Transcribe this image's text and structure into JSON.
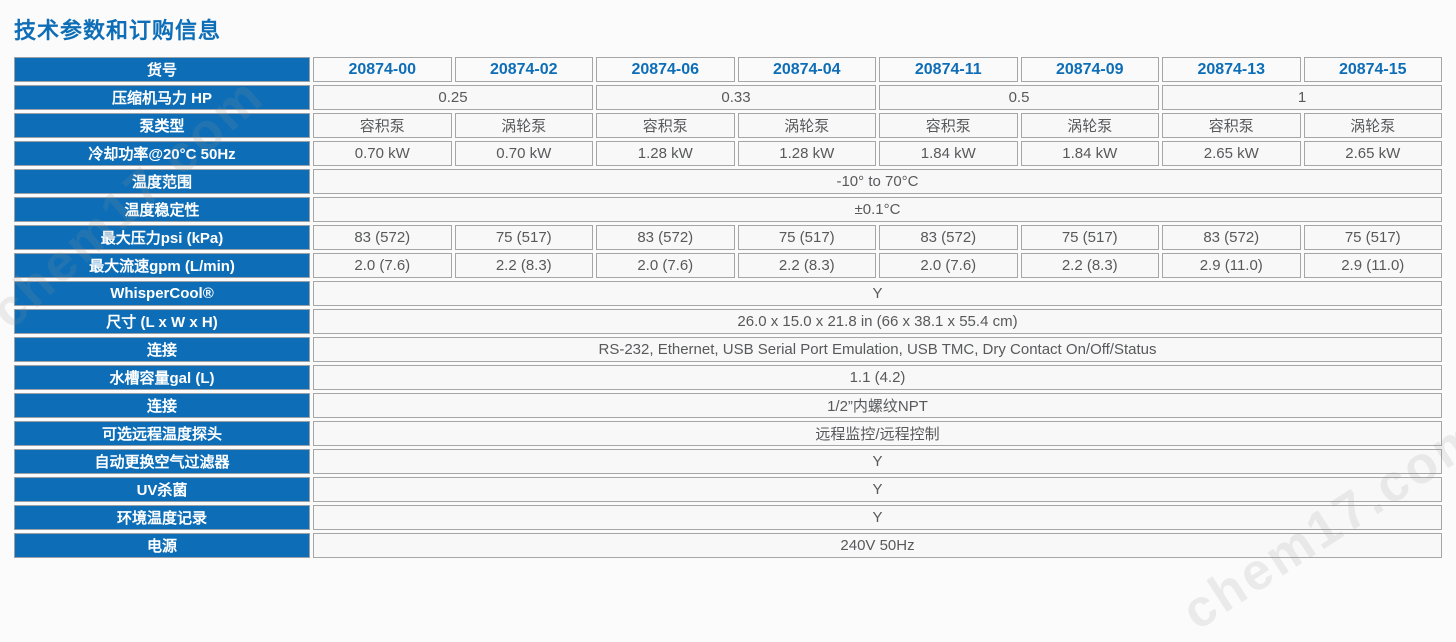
{
  "title": "技术参数和订购信息",
  "watermark": {
    "text": "chem17.com"
  },
  "colors": {
    "accent_blue": "#0d6eb7",
    "label_bg": "#0d6eb7",
    "cell_bg": "#f8f8f8",
    "cell_border": "#a6a6a6",
    "cell_text": "#58595b",
    "page_bg": "#fbfbfb"
  },
  "table": {
    "rows": [
      {
        "label": "货号",
        "header": true,
        "cells": [
          {
            "text": "20874-00"
          },
          {
            "text": "20874-02"
          },
          {
            "text": "20874-06"
          },
          {
            "text": "20874-04"
          },
          {
            "text": "20874-11"
          },
          {
            "text": "20874-09"
          },
          {
            "text": "20874-13"
          },
          {
            "text": "20874-15"
          }
        ]
      },
      {
        "label": "压缩机马力 HP",
        "cells": [
          {
            "text": "0.25",
            "colspan": 2
          },
          {
            "text": "0.33",
            "colspan": 2
          },
          {
            "text": "0.5",
            "colspan": 2
          },
          {
            "text": "1",
            "colspan": 2
          }
        ]
      },
      {
        "label": "泵类型",
        "cells": [
          {
            "text": "容积泵"
          },
          {
            "text": "涡轮泵"
          },
          {
            "text": "容积泵"
          },
          {
            "text": "涡轮泵"
          },
          {
            "text": "容积泵"
          },
          {
            "text": "涡轮泵"
          },
          {
            "text": "容积泵"
          },
          {
            "text": "涡轮泵"
          }
        ]
      },
      {
        "label": "冷却功率@20°C 50Hz",
        "cells": [
          {
            "text": "0.70 kW"
          },
          {
            "text": "0.70 kW"
          },
          {
            "text": "1.28 kW"
          },
          {
            "text": "1.28 kW"
          },
          {
            "text": "1.84 kW"
          },
          {
            "text": "1.84 kW"
          },
          {
            "text": "2.65 kW"
          },
          {
            "text": "2.65 kW"
          }
        ]
      },
      {
        "label": "温度范围",
        "cells": [
          {
            "text": "-10° to 70°C",
            "colspan": 8
          }
        ]
      },
      {
        "label": "温度稳定性",
        "cells": [
          {
            "text": "±0.1°C",
            "colspan": 8
          }
        ]
      },
      {
        "label": "最大压力psi (kPa)",
        "cells": [
          {
            "text": "83 (572)"
          },
          {
            "text": "75 (517)"
          },
          {
            "text": "83 (572)"
          },
          {
            "text": "75 (517)"
          },
          {
            "text": "83 (572)"
          },
          {
            "text": "75 (517)"
          },
          {
            "text": "83 (572)"
          },
          {
            "text": "75 (517)"
          }
        ]
      },
      {
        "label": "最大流速gpm (L/min)",
        "cells": [
          {
            "text": "2.0 (7.6)"
          },
          {
            "text": "2.2 (8.3)"
          },
          {
            "text": "2.0 (7.6)"
          },
          {
            "text": "2.2 (8.3)"
          },
          {
            "text": "2.0 (7.6)"
          },
          {
            "text": "2.2 (8.3)"
          },
          {
            "text": "2.9 (11.0)"
          },
          {
            "text": "2.9 (11.0)"
          }
        ]
      },
      {
        "label": "WhisperCool®",
        "cells": [
          {
            "text": "Y",
            "colspan": 8
          }
        ]
      },
      {
        "label": "尺寸 (L x W x H)",
        "cells": [
          {
            "text": "26.0 x 15.0 x 21.8 in (66 x 38.1 x 55.4 cm)",
            "colspan": 8
          }
        ]
      },
      {
        "label": "连接",
        "cells": [
          {
            "text": "RS-232, Ethernet, USB Serial Port Emulation, USB TMC, Dry Contact On/Off/Status",
            "colspan": 8
          }
        ]
      },
      {
        "label": "水槽容量gal (L)",
        "cells": [
          {
            "text": "1.1 (4.2)",
            "colspan": 8
          }
        ]
      },
      {
        "label": "连接",
        "cells": [
          {
            "text": "1/2”内螺纹NPT",
            "colspan": 8
          }
        ]
      },
      {
        "label": "可选远程温度探头",
        "cells": [
          {
            "text": "远程监控/远程控制",
            "colspan": 8
          }
        ]
      },
      {
        "label": "自动更换空气过滤器",
        "cells": [
          {
            "text": "Y",
            "colspan": 8
          }
        ]
      },
      {
        "label": "UV杀菌",
        "cells": [
          {
            "text": "Y",
            "colspan": 8
          }
        ]
      },
      {
        "label": "环境温度记录",
        "cells": [
          {
            "text": "Y",
            "colspan": 8
          }
        ]
      },
      {
        "label": "电源",
        "cells": [
          {
            "text": "240V 50Hz",
            "colspan": 8
          }
        ]
      }
    ]
  }
}
